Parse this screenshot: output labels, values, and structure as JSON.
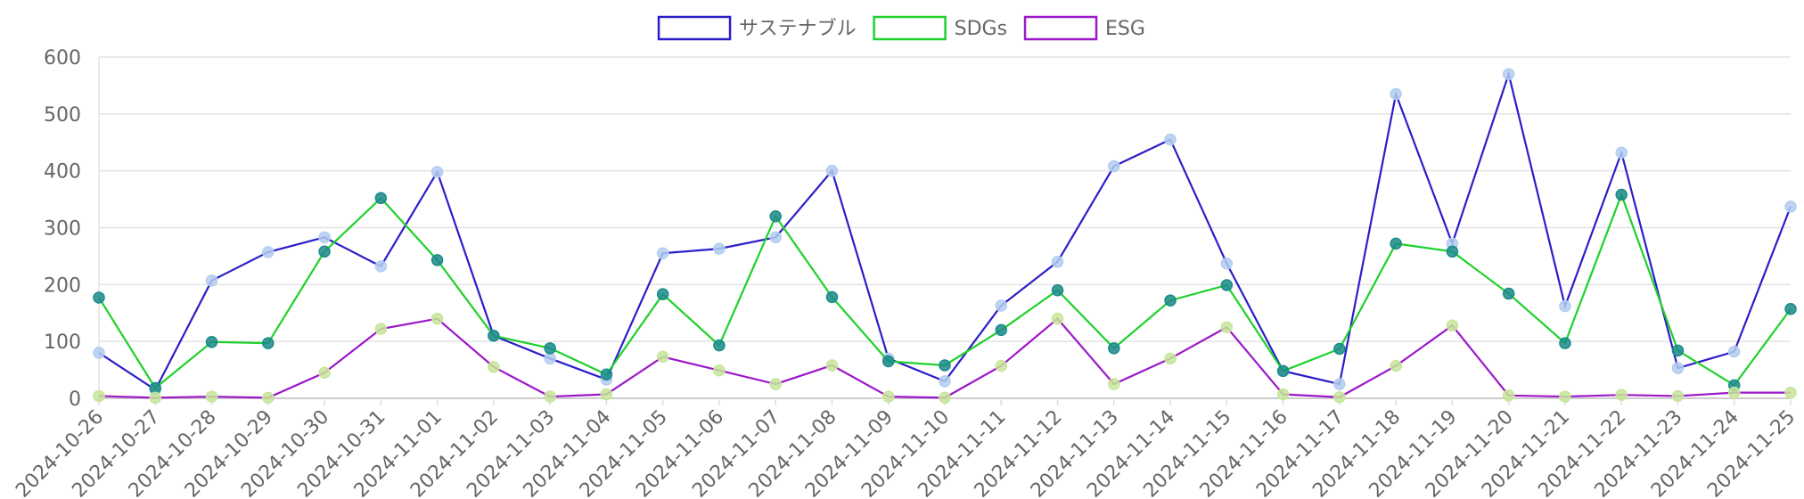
{
  "chart_data": {
    "type": "line",
    "categories": [
      "2024-10-26",
      "2024-10-27",
      "2024-10-28",
      "2024-10-29",
      "2024-10-30",
      "2024-10-31",
      "2024-11-01",
      "2024-11-02",
      "2024-11-03",
      "2024-11-04",
      "2024-11-05",
      "2024-11-06",
      "2024-11-07",
      "2024-11-08",
      "2024-11-09",
      "2024-11-10",
      "2024-11-11",
      "2024-11-12",
      "2024-11-13",
      "2024-11-14",
      "2024-11-15",
      "2024-11-16",
      "2024-11-17",
      "2024-11-18",
      "2024-11-19",
      "2024-11-20",
      "2024-11-21",
      "2024-11-22",
      "2024-11-23",
      "2024-11-24",
      "2024-11-25"
    ],
    "series": [
      {
        "name": "サステナブル",
        "color": "#2b1ec9",
        "marker_color": "#b3cdf0",
        "values": [
          80,
          15,
          207,
          257,
          283,
          232,
          398,
          110,
          70,
          33,
          255,
          263,
          283,
          400,
          70,
          30,
          163,
          240,
          408,
          455,
          237,
          48,
          25,
          535,
          272,
          570,
          162,
          432,
          53,
          82,
          337
        ]
      },
      {
        "name": "SDGs",
        "color": "#1ed12b",
        "marker_color": "#1b8a8a",
        "values": [
          177,
          18,
          99,
          97,
          258,
          352,
          243,
          110,
          88,
          42,
          183,
          93,
          320,
          178,
          65,
          58,
          120,
          190,
          88,
          172,
          199,
          48,
          87,
          272,
          258,
          184,
          97,
          358,
          84,
          23,
          157
        ]
      },
      {
        "name": "ESG",
        "color": "#9b18c9",
        "marker_color": "#c7e59a",
        "values": [
          4,
          1,
          3,
          1,
          45,
          122,
          140,
          55,
          3,
          7,
          73,
          49,
          25,
          58,
          3,
          1,
          57,
          140,
          25,
          70,
          125,
          7,
          2,
          57,
          128,
          5,
          3,
          6,
          4,
          10,
          10
        ]
      }
    ],
    "xlabel": "",
    "ylabel": "",
    "ylim": [
      0,
      600
    ],
    "yticks": [
      0,
      100,
      200,
      300,
      400,
      500,
      600
    ],
    "grid": true,
    "legend_position": "top-center"
  }
}
